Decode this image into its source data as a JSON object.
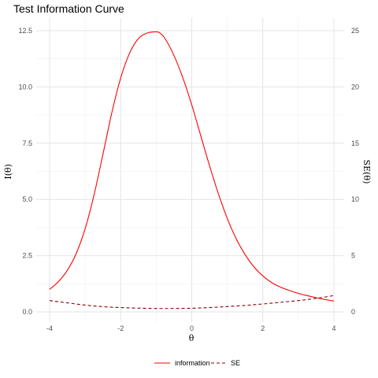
{
  "chart_data": {
    "type": "line",
    "title": "Test Information Curve",
    "xlabel": "θ",
    "ylabel": "I(θ)",
    "y2label": "SE(θ)",
    "xlim": [
      -4,
      4
    ],
    "ylim": [
      0,
      12.5
    ],
    "y2lim": [
      0,
      25
    ],
    "x_ticks": [
      -4,
      -2,
      0,
      2,
      4
    ],
    "y_ticks": [
      0.0,
      2.5,
      5.0,
      7.5,
      10.0,
      12.5
    ],
    "y_tick_labels": [
      "0.0",
      "2.5",
      "5.0",
      "7.5",
      "10.0",
      "12.5"
    ],
    "y2_ticks": [
      0,
      5,
      10,
      15,
      20,
      25
    ],
    "grid": true,
    "legend_position": "bottom",
    "series": [
      {
        "name": "information",
        "axis": "left",
        "color": "#ff0000",
        "line_style": "solid",
        "x": [
          -4,
          -3.75,
          -3.5,
          -3.25,
          -3,
          -2.75,
          -2.5,
          -2.25,
          -2,
          -1.75,
          -1.5,
          -1.25,
          -1,
          -0.9,
          -0.75,
          -0.5,
          -0.25,
          0,
          0.25,
          0.5,
          0.75,
          1,
          1.25,
          1.5,
          1.75,
          2,
          2.25,
          2.5,
          2.75,
          3,
          3.25,
          3.5,
          3.75,
          4
        ],
        "values": [
          1.0,
          1.35,
          1.85,
          2.6,
          3.7,
          5.2,
          7.0,
          8.85,
          10.4,
          11.5,
          12.15,
          12.4,
          12.45,
          12.4,
          12.15,
          11.4,
          10.4,
          9.2,
          7.85,
          6.5,
          5.25,
          4.15,
          3.25,
          2.55,
          2.0,
          1.6,
          1.3,
          1.1,
          0.95,
          0.82,
          0.72,
          0.63,
          0.55,
          0.48
        ]
      },
      {
        "name": "SE",
        "axis": "right",
        "color": "#8b0000",
        "line_style": "dashed",
        "x": [
          -4,
          -3.5,
          -3,
          -2.5,
          -2,
          -1.5,
          -1,
          -0.5,
          0,
          0.5,
          1,
          1.5,
          2,
          2.5,
          3,
          3.5,
          4
        ],
        "values": [
          1.0,
          0.8,
          0.6,
          0.46,
          0.38,
          0.33,
          0.3,
          0.3,
          0.32,
          0.38,
          0.47,
          0.57,
          0.7,
          0.85,
          1.0,
          1.2,
          1.45
        ]
      }
    ]
  }
}
